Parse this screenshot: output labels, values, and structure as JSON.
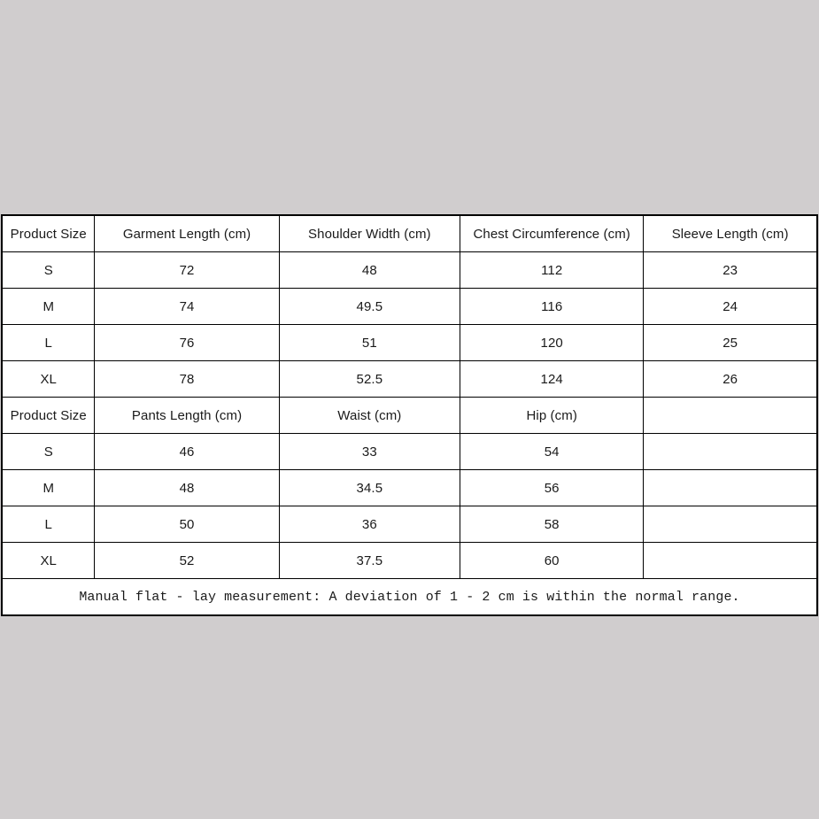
{
  "page": {
    "background_color": "#d0cdce",
    "table_background": "#ffffff",
    "border_color": "#000000",
    "text_color": "#1a1a1a"
  },
  "chart_data": {
    "type": "table",
    "sections": [
      {
        "headers": [
          "Product Size",
          "Garment Length (cm)",
          "Shoulder Width (cm)",
          "Chest Circumference (cm)",
          "Sleeve Length (cm)"
        ],
        "rows": [
          [
            "S",
            "72",
            "48",
            "112",
            "23"
          ],
          [
            "M",
            "74",
            "49.5",
            "116",
            "24"
          ],
          [
            "L",
            "76",
            "51",
            "120",
            "25"
          ],
          [
            "XL",
            "78",
            "52.5",
            "124",
            "26"
          ]
        ]
      },
      {
        "headers": [
          "Product Size",
          "Pants Length (cm)",
          "Waist (cm)",
          "Hip (cm)",
          ""
        ],
        "rows": [
          [
            "S",
            "46",
            "33",
            "54",
            ""
          ],
          [
            "M",
            "48",
            "34.5",
            "56",
            ""
          ],
          [
            "L",
            "50",
            "36",
            "58",
            ""
          ],
          [
            "XL",
            "52",
            "37.5",
            "60",
            ""
          ]
        ]
      }
    ],
    "footnote": "Manual flat - lay measurement: A deviation of 1 - 2 cm is within the normal range."
  }
}
